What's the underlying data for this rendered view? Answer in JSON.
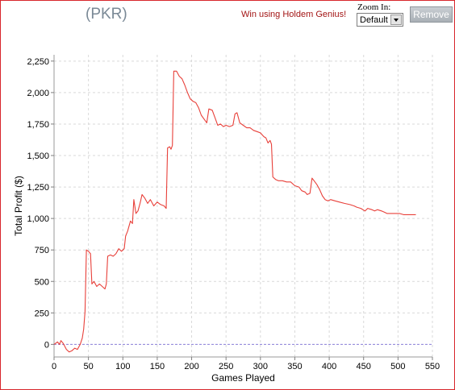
{
  "header": {
    "title": "(PKR)",
    "promo_link": "Win using Holdem Genius!",
    "zoom_label": "Zoom In:",
    "zoom_value": "Default",
    "remove_label": "Remove"
  },
  "colors": {
    "series": "#e8403a",
    "zero_line": "#8a7fd8",
    "grid": "#d9d9d9",
    "frame": "#d8262c"
  },
  "chart_data": {
    "type": "line",
    "xlabel": "Games Played",
    "ylabel": "Total Profit ($)",
    "xlim": [
      0,
      550
    ],
    "ylim": [
      -100,
      2300
    ],
    "xticks": [
      0,
      50,
      100,
      150,
      200,
      250,
      300,
      350,
      400,
      450,
      500,
      550
    ],
    "yticks": [
      0,
      250,
      500,
      750,
      1000,
      1250,
      1500,
      1750,
      2000,
      2250
    ],
    "ytick_labels": [
      "0",
      "250",
      "500",
      "750",
      "1,000",
      "1,250",
      "1,500",
      "1,750",
      "2,000",
      "2,250"
    ],
    "grid": true,
    "reference_line": 0,
    "series": [
      {
        "points": [
          [
            0,
            0
          ],
          [
            5,
            20
          ],
          [
            8,
            0
          ],
          [
            10,
            30
          ],
          [
            13,
            10
          ],
          [
            15,
            -10
          ],
          [
            18,
            -40
          ],
          [
            22,
            -60
          ],
          [
            26,
            -50
          ],
          [
            30,
            -30
          ],
          [
            34,
            -40
          ],
          [
            38,
            0
          ],
          [
            41,
            50
          ],
          [
            43,
            120
          ],
          [
            45,
            260
          ],
          [
            47,
            750
          ],
          [
            50,
            740
          ],
          [
            53,
            720
          ],
          [
            55,
            480
          ],
          [
            58,
            500
          ],
          [
            62,
            460
          ],
          [
            66,
            480
          ],
          [
            70,
            460
          ],
          [
            74,
            440
          ],
          [
            76,
            480
          ],
          [
            78,
            700
          ],
          [
            82,
            710
          ],
          [
            86,
            700
          ],
          [
            90,
            720
          ],
          [
            94,
            760
          ],
          [
            98,
            740
          ],
          [
            102,
            760
          ],
          [
            104,
            860
          ],
          [
            107,
            900
          ],
          [
            111,
            980
          ],
          [
            114,
            960
          ],
          [
            116,
            1150
          ],
          [
            119,
            1040
          ],
          [
            122,
            1060
          ],
          [
            125,
            1120
          ],
          [
            128,
            1190
          ],
          [
            132,
            1160
          ],
          [
            136,
            1120
          ],
          [
            140,
            1150
          ],
          [
            145,
            1100
          ],
          [
            150,
            1130
          ],
          [
            155,
            1110
          ],
          [
            160,
            1100
          ],
          [
            163,
            1080
          ],
          [
            165,
            1560
          ],
          [
            168,
            1570
          ],
          [
            170,
            1550
          ],
          [
            172,
            1580
          ],
          [
            174,
            2170
          ],
          [
            178,
            2170
          ],
          [
            182,
            2130
          ],
          [
            186,
            2110
          ],
          [
            190,
            2060
          ],
          [
            194,
            2000
          ],
          [
            198,
            1950
          ],
          [
            202,
            1930
          ],
          [
            206,
            1920
          ],
          [
            210,
            1880
          ],
          [
            214,
            1820
          ],
          [
            218,
            1790
          ],
          [
            222,
            1760
          ],
          [
            225,
            1870
          ],
          [
            230,
            1860
          ],
          [
            234,
            1800
          ],
          [
            238,
            1740
          ],
          [
            242,
            1750
          ],
          [
            246,
            1730
          ],
          [
            250,
            1740
          ],
          [
            255,
            1730
          ],
          [
            260,
            1740
          ],
          [
            263,
            1830
          ],
          [
            266,
            1840
          ],
          [
            270,
            1760
          ],
          [
            275,
            1740
          ],
          [
            280,
            1720
          ],
          [
            285,
            1720
          ],
          [
            290,
            1700
          ],
          [
            295,
            1690
          ],
          [
            300,
            1680
          ],
          [
            305,
            1650
          ],
          [
            308,
            1640
          ],
          [
            311,
            1600
          ],
          [
            314,
            1620
          ],
          [
            316,
            1590
          ],
          [
            318,
            1330
          ],
          [
            322,
            1310
          ],
          [
            326,
            1300
          ],
          [
            332,
            1300
          ],
          [
            338,
            1290
          ],
          [
            344,
            1290
          ],
          [
            350,
            1260
          ],
          [
            356,
            1250
          ],
          [
            360,
            1220
          ],
          [
            365,
            1210
          ],
          [
            368,
            1190
          ],
          [
            372,
            1200
          ],
          [
            375,
            1320
          ],
          [
            378,
            1300
          ],
          [
            382,
            1270
          ],
          [
            386,
            1230
          ],
          [
            390,
            1180
          ],
          [
            394,
            1150
          ],
          [
            398,
            1140
          ],
          [
            402,
            1150
          ],
          [
            408,
            1140
          ],
          [
            415,
            1130
          ],
          [
            422,
            1120
          ],
          [
            430,
            1110
          ],
          [
            436,
            1100
          ],
          [
            440,
            1090
          ],
          [
            446,
            1080
          ],
          [
            452,
            1060
          ],
          [
            456,
            1080
          ],
          [
            462,
            1070
          ],
          [
            466,
            1060
          ],
          [
            470,
            1070
          ],
          [
            476,
            1060
          ],
          [
            480,
            1050
          ],
          [
            484,
            1040
          ],
          [
            490,
            1040
          ],
          [
            496,
            1040
          ],
          [
            502,
            1040
          ],
          [
            508,
            1030
          ],
          [
            515,
            1030
          ],
          [
            522,
            1030
          ],
          [
            526,
            1030
          ]
        ]
      }
    ]
  }
}
